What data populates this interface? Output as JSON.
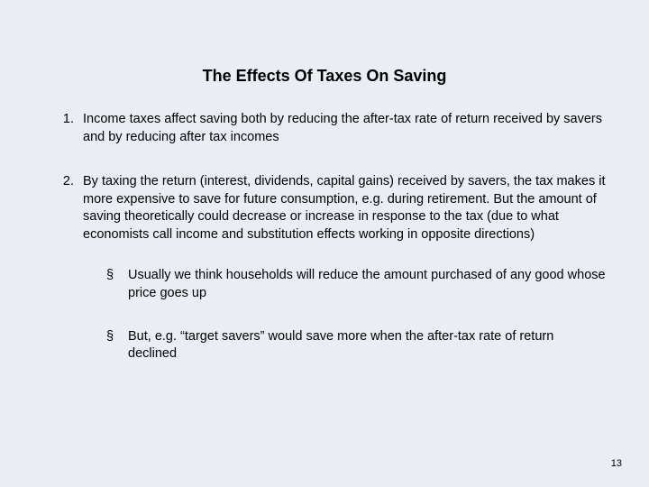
{
  "background_color": "#eaeef4",
  "text_color": "#000000",
  "font_family": "Arial",
  "title": "The Effects Of Taxes On Saving",
  "title_fontsize": 18,
  "body_fontsize": 14.5,
  "line_height": 1.35,
  "items": [
    {
      "text": "Income taxes affect saving both by reducing the after-tax rate of return received by savers and by reducing after tax incomes"
    },
    {
      "text": "By taxing the return (interest, dividends, capital gains) received by savers, the tax makes it more expensive to save for future consumption, e.g. during retirement.  But the amount of saving theoretically could decrease or increase in response to the tax (due to what economists call income and substitution effects working in opposite directions)",
      "sub": [
        "Usually we think households will reduce the amount purchased of any good whose price goes up",
        "But, e.g. “target savers” would save more when the after-tax rate of return declined"
      ]
    }
  ],
  "page_number": "13"
}
